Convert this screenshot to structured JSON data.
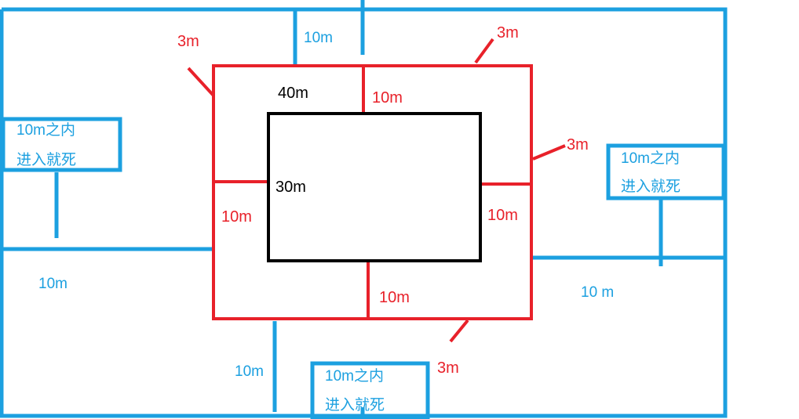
{
  "colors": {
    "blue": "#1ca0e0",
    "red": "#e8212a",
    "black": "#000000",
    "background": "#ffffff"
  },
  "inner_box": {
    "width_label": "40m",
    "height_label": "30m"
  },
  "red_ring": {
    "gap_top": "10m",
    "gap_left": "10m",
    "gap_right": "10m",
    "gap_bottom": "10m",
    "thickness_top_left": "3m",
    "thickness_top_right": "3m",
    "thickness_right": "3m",
    "thickness_bottom": "3m"
  },
  "blue_zone": {
    "gap_top": "10m",
    "gap_left": "10m",
    "gap_right": "10 m",
    "gap_bottom": "10m"
  },
  "warnings": [
    {
      "line1": "10m之内",
      "line2": "进入就死"
    },
    {
      "line1": "10m之内",
      "line2": "进入就死"
    },
    {
      "line1": "10m之内",
      "line2": "进入就死"
    }
  ]
}
